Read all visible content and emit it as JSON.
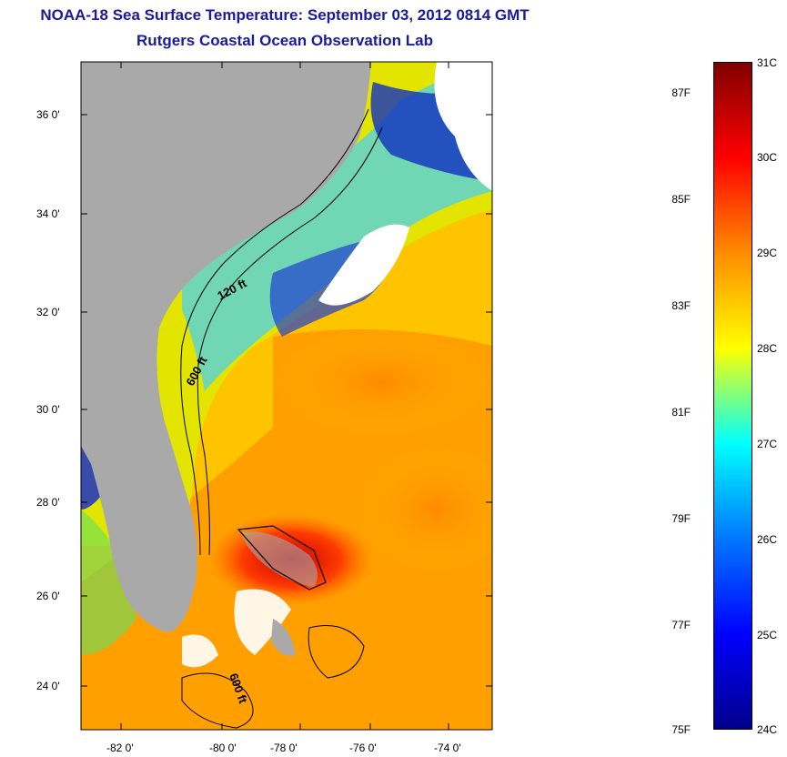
{
  "header": {
    "title": "NOAA-18 Sea Surface Temperature:  September 03, 2012 0814 GMT",
    "subtitle": "Rutgers Coastal Ocean Observation Lab"
  },
  "map": {
    "lat_ticks": [
      "36 0'",
      "34 0'",
      "32 0'",
      "30 0'",
      "28 0'",
      "26 0'",
      "24 0'"
    ],
    "lon_ticks": [
      "-82 0'",
      "-80 0'",
      "-78 0'",
      "-76 0'",
      "-74 0'"
    ],
    "contour_labels": [
      "120 ft",
      "600 ft",
      "600 ft"
    ],
    "colors": {
      "land": "#a9a9a9",
      "cloud": "#ffffff",
      "contour": "#000000"
    }
  },
  "colorbar": {
    "fahrenheit_labels": [
      "87F",
      "85F",
      "83F",
      "81F",
      "79F",
      "77F",
      "75F"
    ],
    "celsius_labels": [
      "31C",
      "30C",
      "29C",
      "28C",
      "27C",
      "26C",
      "25C",
      "24C"
    ],
    "gradient": [
      "#800000",
      "#ff0000",
      "#ff8c00",
      "#ffff00",
      "#00ffff",
      "#0078ff",
      "#0000ff",
      "#00008b"
    ]
  }
}
